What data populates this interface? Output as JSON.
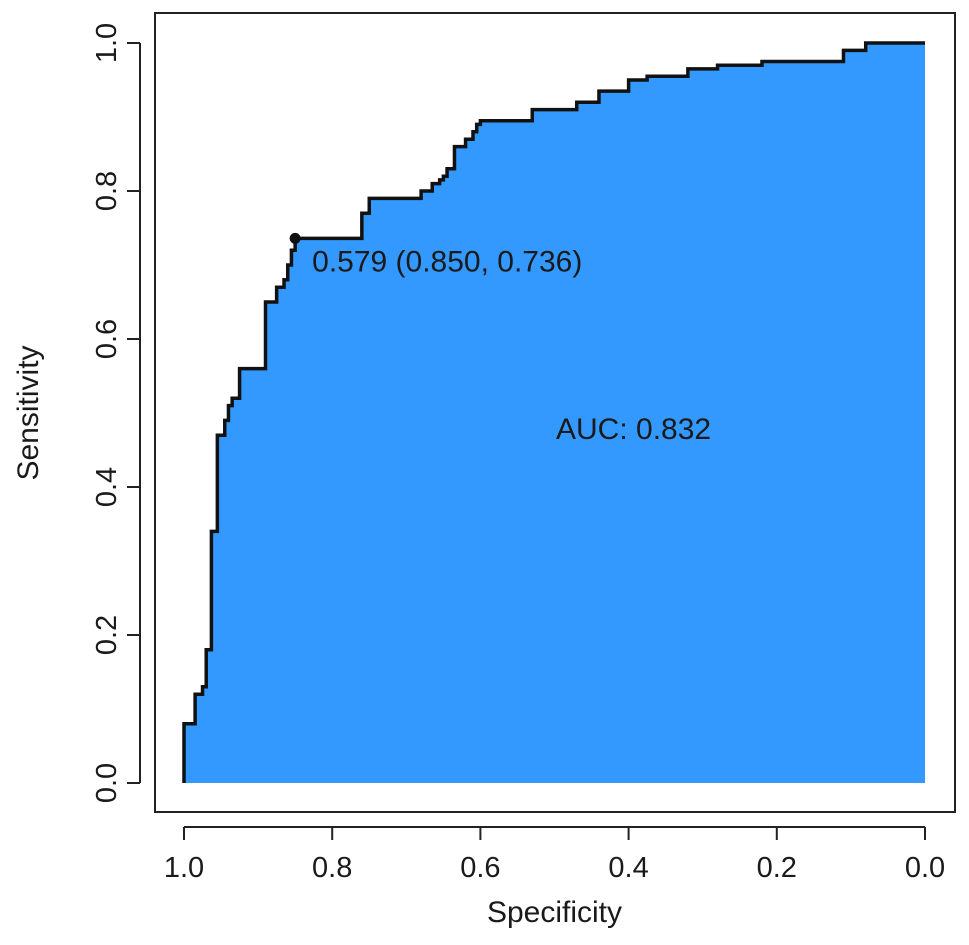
{
  "chart_data": {
    "type": "area",
    "xlabel": "Specificity",
    "ylabel": "Sensitivity",
    "xlim": [
      1.0,
      0.0
    ],
    "ylim": [
      0.0,
      1.0
    ],
    "x_reversed": true,
    "xticks": [
      "1.0",
      "0.8",
      "0.6",
      "0.4",
      "0.2",
      "0.0"
    ],
    "yticks": [
      "0.0",
      "0.2",
      "0.4",
      "0.6",
      "0.8",
      "1.0"
    ],
    "grid": false,
    "fill_color": "#3399ff",
    "line_color": "#111111",
    "series": [
      {
        "specificity": [
          1.0,
          1.0,
          0.985,
          0.985,
          0.975,
          0.975,
          0.97,
          0.97,
          0.963,
          0.963,
          0.955,
          0.955,
          0.945,
          0.945,
          0.94,
          0.94,
          0.935,
          0.935,
          0.925,
          0.925,
          0.91,
          0.91,
          0.89,
          0.89,
          0.875,
          0.875,
          0.865,
          0.865,
          0.86,
          0.86,
          0.855,
          0.855,
          0.85,
          0.85,
          0.76,
          0.76,
          0.75,
          0.75,
          0.68,
          0.68,
          0.665,
          0.665,
          0.655,
          0.655,
          0.65,
          0.65,
          0.645,
          0.645,
          0.635,
          0.635,
          0.62,
          0.62,
          0.61,
          0.61,
          0.605,
          0.605,
          0.6,
          0.6,
          0.53,
          0.53,
          0.47,
          0.47,
          0.44,
          0.44,
          0.4,
          0.4,
          0.375,
          0.375,
          0.32,
          0.32,
          0.28,
          0.28,
          0.22,
          0.22,
          0.11,
          0.11,
          0.08,
          0.08,
          0.0
        ],
        "sensitivity": [
          0.0,
          0.08,
          0.08,
          0.12,
          0.12,
          0.13,
          0.13,
          0.18,
          0.18,
          0.34,
          0.34,
          0.47,
          0.47,
          0.49,
          0.49,
          0.51,
          0.51,
          0.52,
          0.52,
          0.56,
          0.56,
          0.56,
          0.56,
          0.65,
          0.65,
          0.67,
          0.67,
          0.68,
          0.68,
          0.7,
          0.7,
          0.72,
          0.72,
          0.736,
          0.736,
          0.77,
          0.77,
          0.79,
          0.79,
          0.8,
          0.8,
          0.81,
          0.81,
          0.815,
          0.815,
          0.82,
          0.82,
          0.83,
          0.83,
          0.86,
          0.86,
          0.87,
          0.87,
          0.88,
          0.88,
          0.89,
          0.89,
          0.895,
          0.895,
          0.91,
          0.91,
          0.92,
          0.92,
          0.935,
          0.935,
          0.95,
          0.95,
          0.955,
          0.955,
          0.965,
          0.965,
          0.97,
          0.97,
          0.975,
          0.975,
          0.99,
          0.99,
          1.0,
          1.0
        ]
      }
    ],
    "threshold_point": {
      "specificity": 0.85,
      "sensitivity": 0.736,
      "label": "0.579 (0.850, 0.736)"
    },
    "annotations": [
      {
        "text": "AUC: 0.832"
      }
    ]
  }
}
